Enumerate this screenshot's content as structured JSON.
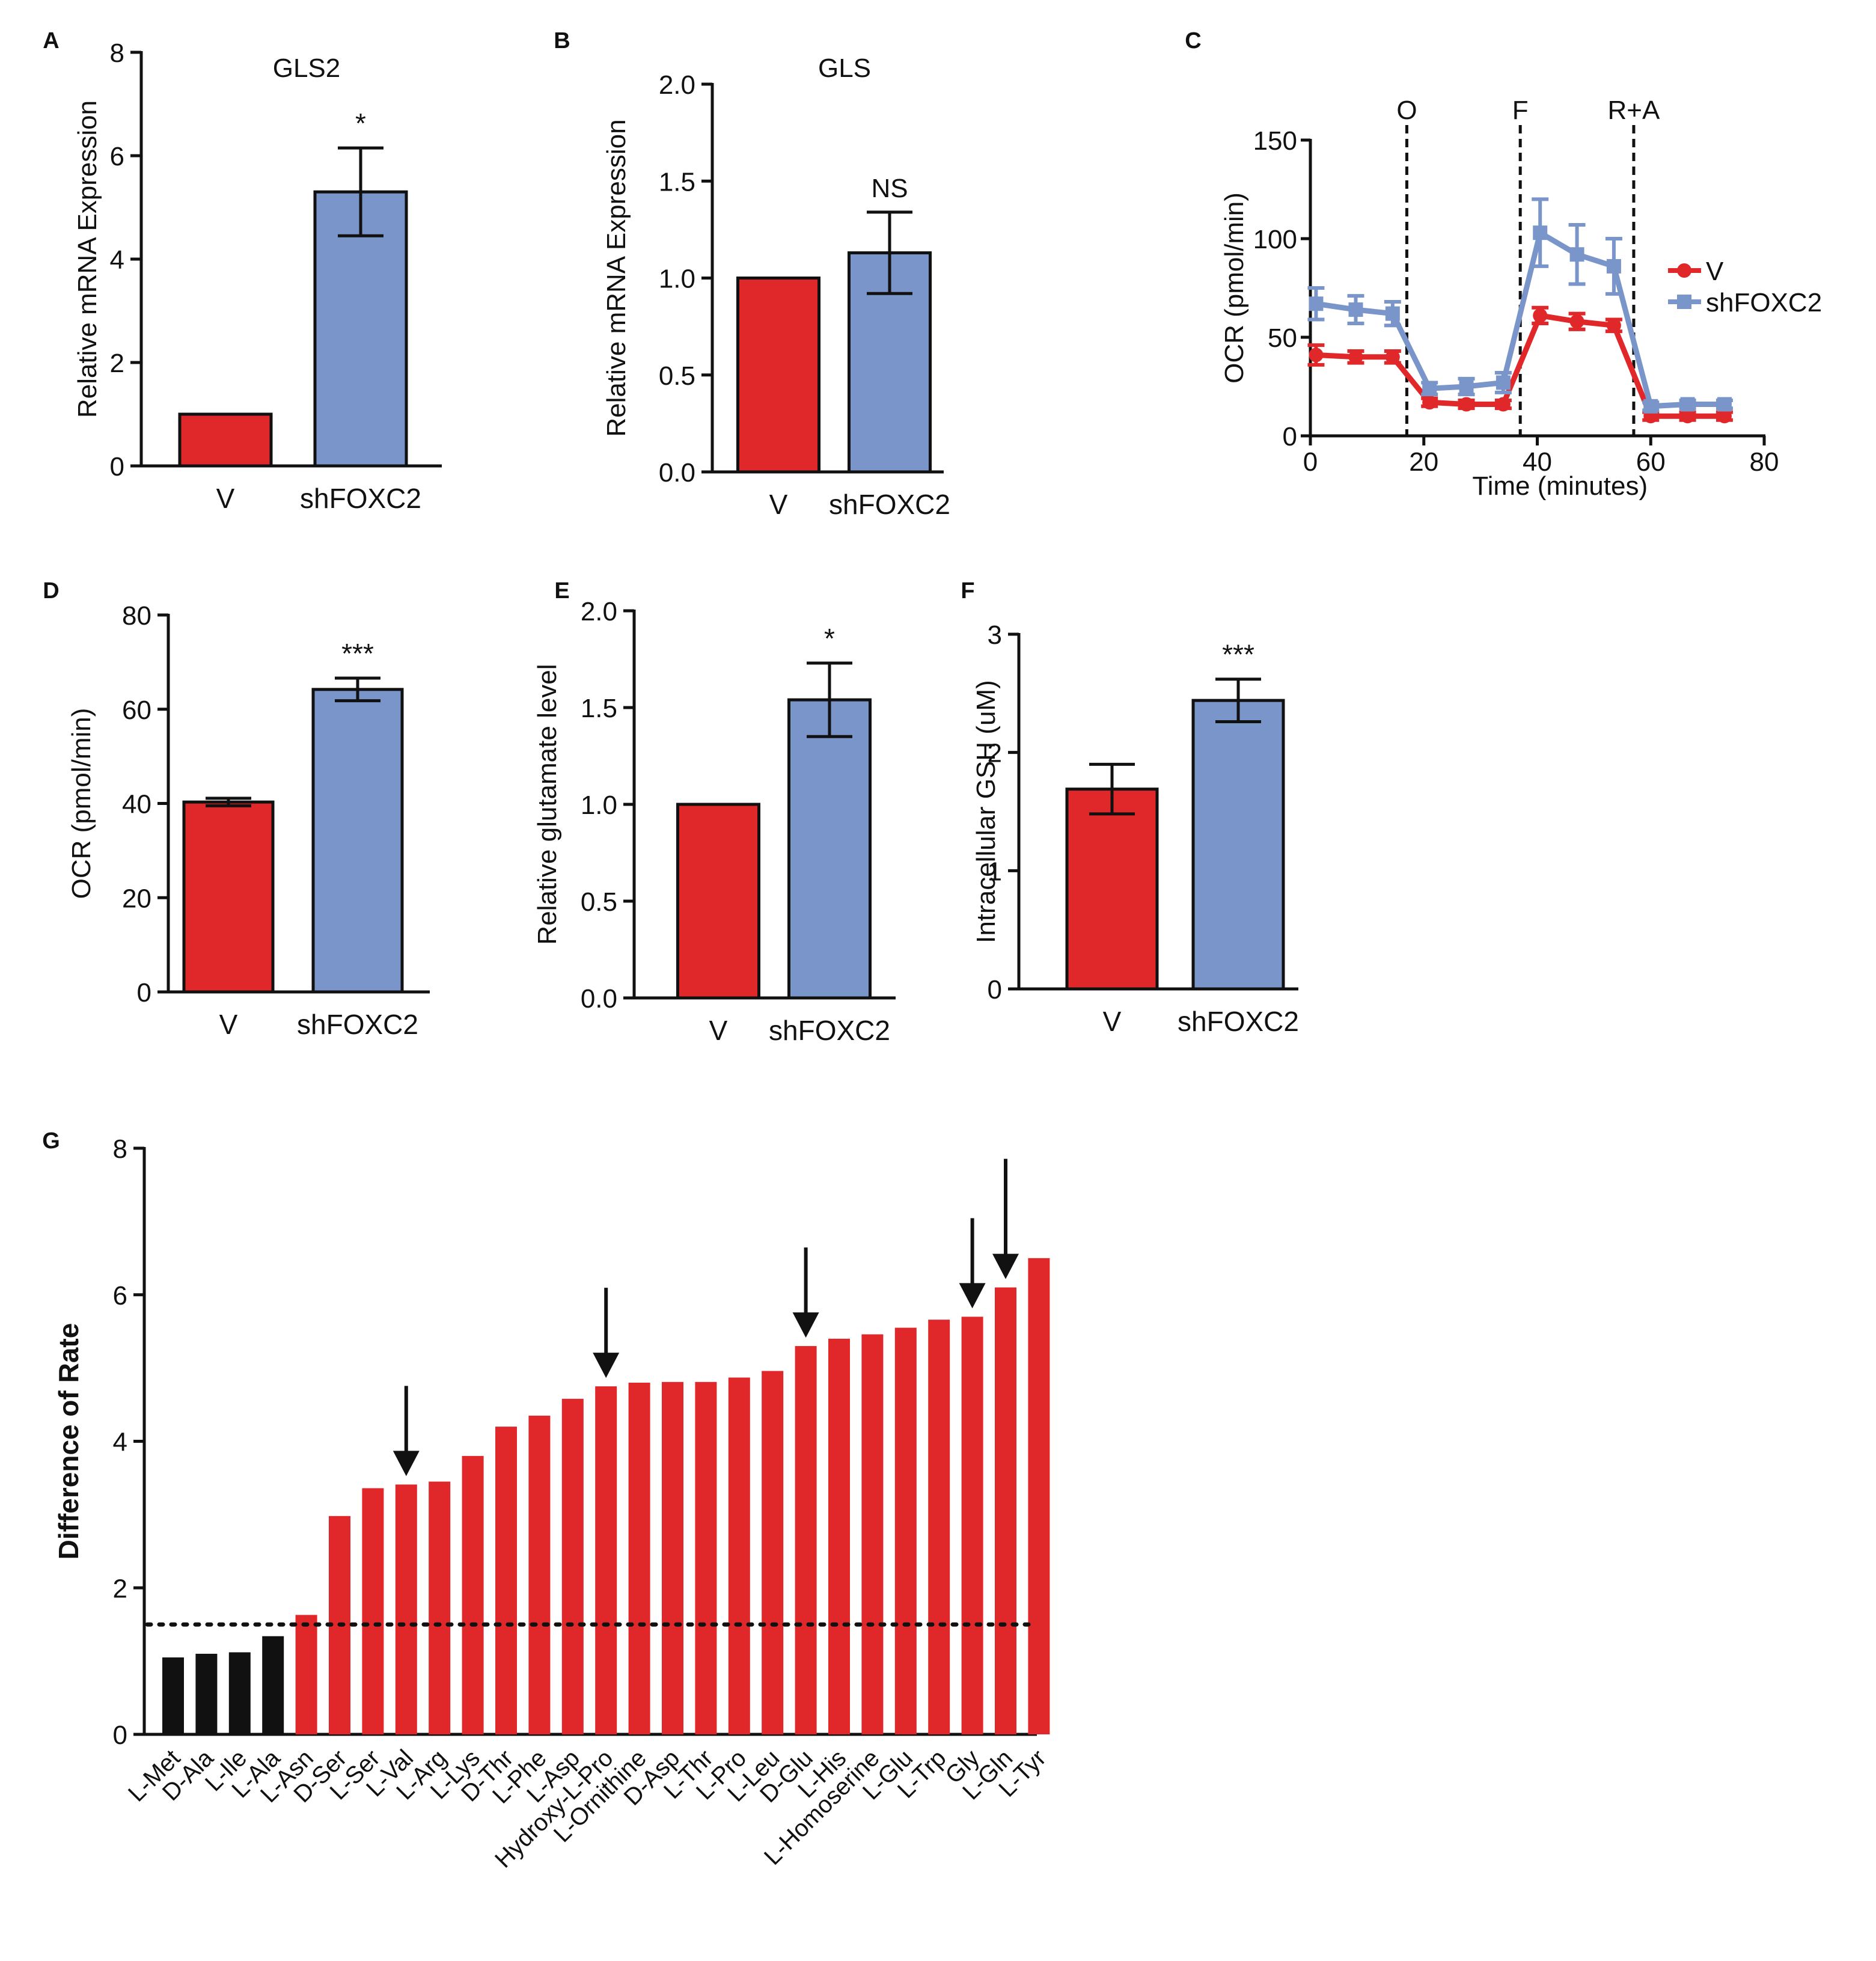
{
  "colors": {
    "red": "#e0282a",
    "blue": "#7995c9",
    "black": "#111111"
  },
  "chart_data": [
    {
      "panel": "A",
      "type": "bar",
      "title": "GLS2",
      "ylabel": "Relative mRNA Expression",
      "ylim": [
        0,
        8
      ],
      "yticks": [
        "0",
        "2",
        "4",
        "6",
        "8"
      ],
      "categories": [
        "V",
        "shFOXC2"
      ],
      "values": [
        1.0,
        5.3
      ],
      "errors": [
        0,
        0.85
      ],
      "annotations": [
        "",
        "*"
      ]
    },
    {
      "panel": "B",
      "type": "bar",
      "title": "GLS",
      "ylabel": "Relative mRNA Expression",
      "ylim": [
        0,
        2.0
      ],
      "yticks": [
        "0.0",
        "0.5",
        "1.0",
        "1.5",
        "2.0"
      ],
      "categories": [
        "V",
        "shFOXC2"
      ],
      "values": [
        1.0,
        1.13
      ],
      "errors": [
        0,
        0.21
      ],
      "annotations": [
        "",
        "NS"
      ]
    },
    {
      "panel": "C",
      "type": "line",
      "xlabel": "Time (minutes)",
      "ylabel": "OCR (pmol/min)",
      "xlim": [
        0,
        80
      ],
      "ylim": [
        0,
        150
      ],
      "xticks": [
        "0",
        "20",
        "40",
        "60",
        "80"
      ],
      "yticks": [
        "0",
        "50",
        "100",
        "150"
      ],
      "injections": [
        {
          "x": 17,
          "label": "O"
        },
        {
          "x": 37,
          "label": "F"
        },
        {
          "x": 57,
          "label": "R+A"
        }
      ],
      "series": [
        {
          "name": "V",
          "x": [
            1,
            8,
            14.5,
            21,
            27.5,
            34,
            40.5,
            47,
            53.5,
            60,
            66.5,
            73
          ],
          "values": [
            41,
            40,
            40,
            17,
            16,
            16,
            61,
            58,
            56,
            10,
            10,
            10
          ],
          "errors": [
            5,
            3,
            3,
            2,
            2,
            2,
            4,
            4,
            3,
            2,
            2,
            2
          ]
        },
        {
          "name": "shFOXC2",
          "x": [
            1,
            8,
            14.5,
            21,
            27.5,
            34,
            40.5,
            47,
            53.5,
            60,
            66.5,
            73
          ],
          "values": [
            67,
            64,
            62,
            24,
            25,
            27,
            103,
            92,
            86,
            15,
            16,
            16
          ],
          "errors": [
            8,
            7,
            6,
            3,
            4,
            5,
            17,
            15,
            14,
            2,
            2,
            2
          ]
        }
      ]
    },
    {
      "panel": "D",
      "type": "bar",
      "title": "",
      "ylabel": "OCR (pmol/min)",
      "ylim": [
        0,
        80
      ],
      "yticks": [
        "0",
        "20",
        "40",
        "60",
        "80"
      ],
      "categories": [
        "V",
        "shFOXC2"
      ],
      "values": [
        40.3,
        64.2
      ],
      "errors": [
        0.8,
        2.4
      ],
      "annotations": [
        "",
        "***"
      ]
    },
    {
      "panel": "E",
      "type": "bar",
      "title": "",
      "ylabel": "Relative glutamate level",
      "ylim": [
        0,
        2.0
      ],
      "yticks": [
        "0.0",
        "0.5",
        "1.0",
        "1.5",
        "2.0"
      ],
      "categories": [
        "V",
        "shFOXC2"
      ],
      "values": [
        1.0,
        1.54
      ],
      "errors": [
        0,
        0.19
      ],
      "annotations": [
        "",
        "*"
      ]
    },
    {
      "panel": "F",
      "type": "bar",
      "title": "",
      "ylabel": "Intracellular GSH (uM)",
      "ylim": [
        0,
        3
      ],
      "yticks": [
        "0",
        "1",
        "2",
        "3"
      ],
      "categories": [
        "V",
        "shFOXC2"
      ],
      "values": [
        1.69,
        2.44
      ],
      "errors": [
        0.21,
        0.18
      ],
      "annotations": [
        "",
        "***"
      ]
    },
    {
      "panel": "G",
      "type": "bar",
      "ylabel": "Difference of Rate",
      "ylim": [
        0,
        8
      ],
      "yticks": [
        "0",
        "2",
        "4",
        "6",
        "8"
      ],
      "threshold": 1.5,
      "categories": [
        "L-Met",
        "D-Ala",
        "L-Ile",
        "L-Ala",
        "L-Asn",
        "D-Ser",
        "L-Ser",
        "L-Val",
        "L-Arg",
        "L-Lys",
        "D-Thr",
        "L-Phe",
        "L-Asp",
        "Hydroxy-L-Pro",
        "L-Ornithine",
        "D-Asp",
        "L-Thr",
        "L-Pro",
        "L-Leu",
        "D-Glu",
        "L-His",
        "L-Homoserine",
        "L-Glu",
        "L-Trp",
        "Gly",
        "L-Gln",
        "L-Tyr"
      ],
      "values": [
        1.05,
        1.1,
        1.12,
        1.34,
        1.63,
        2.98,
        3.36,
        3.41,
        3.45,
        3.8,
        4.2,
        4.35,
        4.58,
        4.75,
        4.8,
        4.81,
        4.81,
        4.87,
        4.96,
        5.3,
        5.4,
        5.46,
        5.55,
        5.66,
        5.7,
        6.1,
        6.5
      ],
      "arrows": [
        "L-Val",
        "Hydroxy-L-Pro",
        "D-Glu",
        "Gly",
        "L-Gln"
      ]
    }
  ],
  "panel_labels": [
    "A",
    "B",
    "C",
    "D",
    "E",
    "F",
    "G"
  ]
}
